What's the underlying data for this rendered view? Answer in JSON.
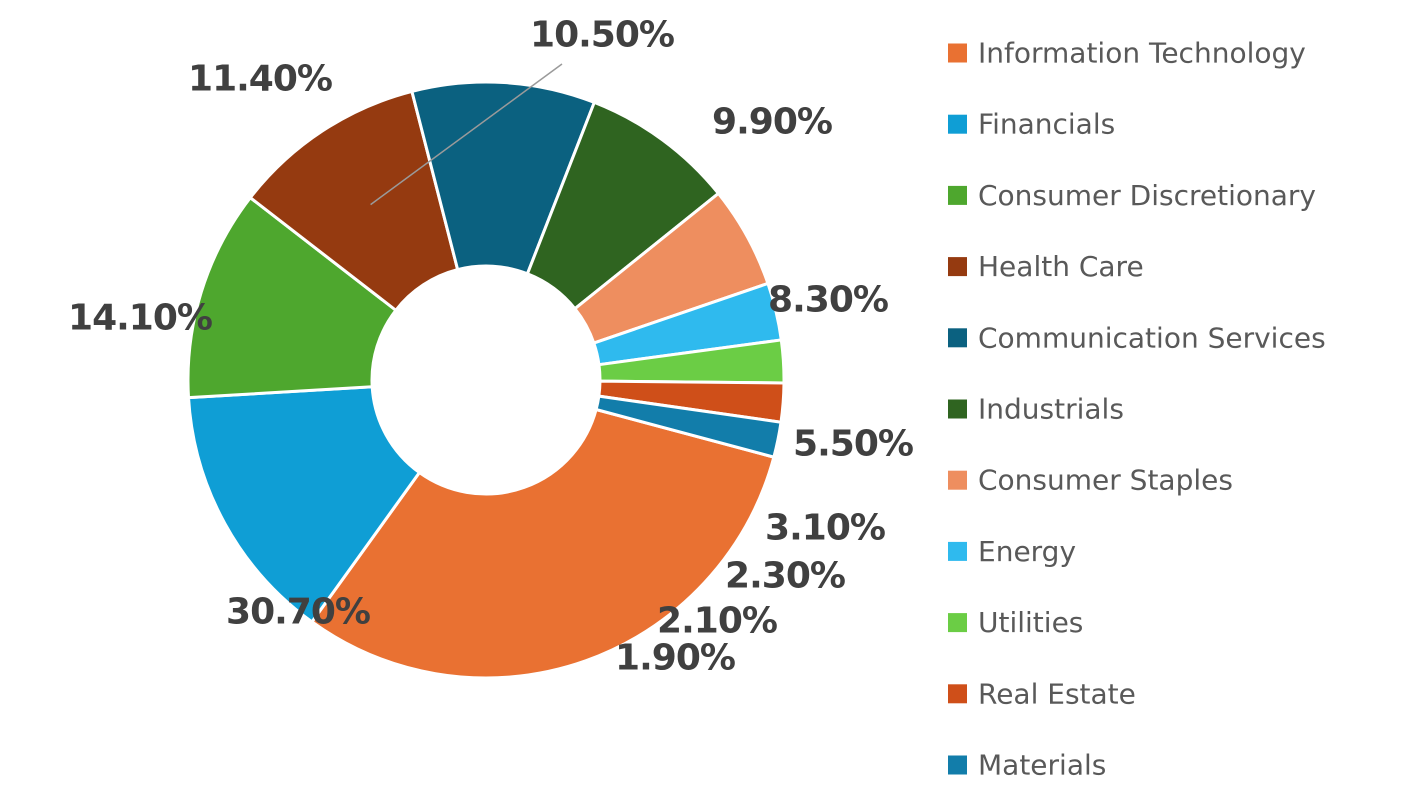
{
  "chart_data": {
    "type": "pie",
    "variant": "donut",
    "title": "",
    "legend_position": "right",
    "categories": [
      "Information Technology",
      "Financials",
      "Consumer Discretionary",
      "Health Care",
      "Communication Services",
      "Industrials",
      "Consumer Staples",
      "Energy",
      "Utilities",
      "Real Estate",
      "Materials"
    ],
    "values": [
      30.7,
      14.1,
      11.4,
      10.5,
      9.9,
      8.3,
      5.5,
      3.1,
      2.3,
      2.1,
      1.9
    ],
    "labels": [
      "30.70%",
      "14.10%",
      "11.40%",
      "10.50%",
      "9.90%",
      "8.30%",
      "5.50%",
      "3.10%",
      "2.30%",
      "2.10%",
      "1.90%"
    ],
    "colors": [
      "#E97132",
      "#0F9ED5",
      "#4EA72E",
      "#953A10",
      "#0B6180",
      "#2F6420",
      "#EE8E5F",
      "#2FBAEE",
      "#6BCD45",
      "#CF4F19",
      "#127DAA"
    ]
  }
}
